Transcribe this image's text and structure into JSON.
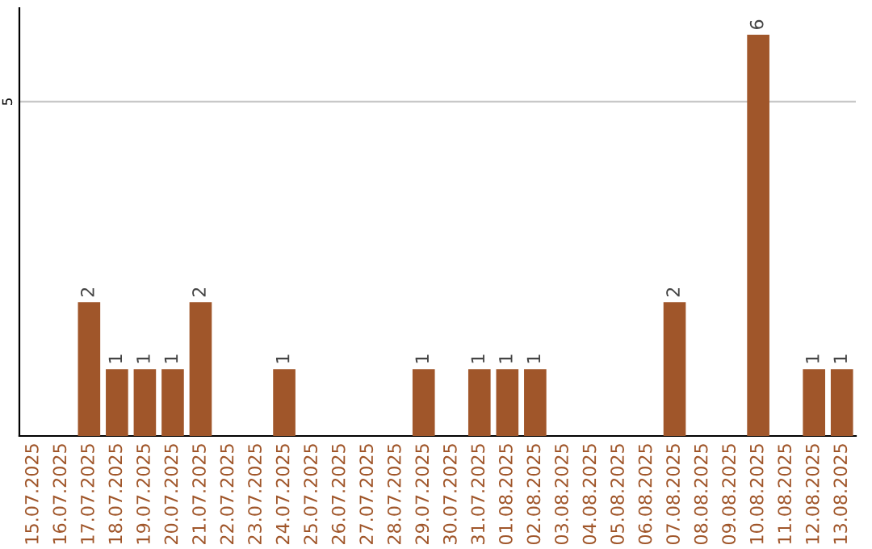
{
  "chart_data": {
    "type": "bar",
    "categories": [
      "15.07.2025",
      "16.07.2025",
      "17.07.2025",
      "18.07.2025",
      "19.07.2025",
      "20.07.2025",
      "21.07.2025",
      "22.07.2025",
      "23.07.2025",
      "24.07.2025",
      "25.07.2025",
      "26.07.2025",
      "27.07.2025",
      "28.07.2025",
      "29.07.2025",
      "30.07.2025",
      "31.07.2025",
      "01.08.2025",
      "02.08.2025",
      "03.08.2025",
      "04.08.2025",
      "05.08.2025",
      "06.08.2025",
      "07.08.2025",
      "08.08.2025",
      "09.08.2025",
      "10.08.2025",
      "11.08.2025",
      "12.08.2025",
      "13.08.2025"
    ],
    "values": [
      0,
      0,
      2,
      1,
      1,
      1,
      2,
      0,
      0,
      1,
      0,
      0,
      0,
      0,
      1,
      0,
      1,
      1,
      1,
      0,
      0,
      0,
      0,
      2,
      0,
      0,
      6,
      0,
      1,
      1
    ],
    "value_labels": [
      null,
      null,
      "2",
      "1",
      "1",
      "1",
      "2",
      null,
      null,
      "1",
      null,
      null,
      null,
      null,
      "1",
      null,
      "1",
      "1",
      "1",
      null,
      null,
      null,
      null,
      "2",
      null,
      null,
      "6",
      null,
      "1",
      "1"
    ],
    "color": "#a0562a",
    "ylim": [
      0,
      6.4
    ],
    "yticks": [
      5
    ],
    "grid": "y"
  }
}
